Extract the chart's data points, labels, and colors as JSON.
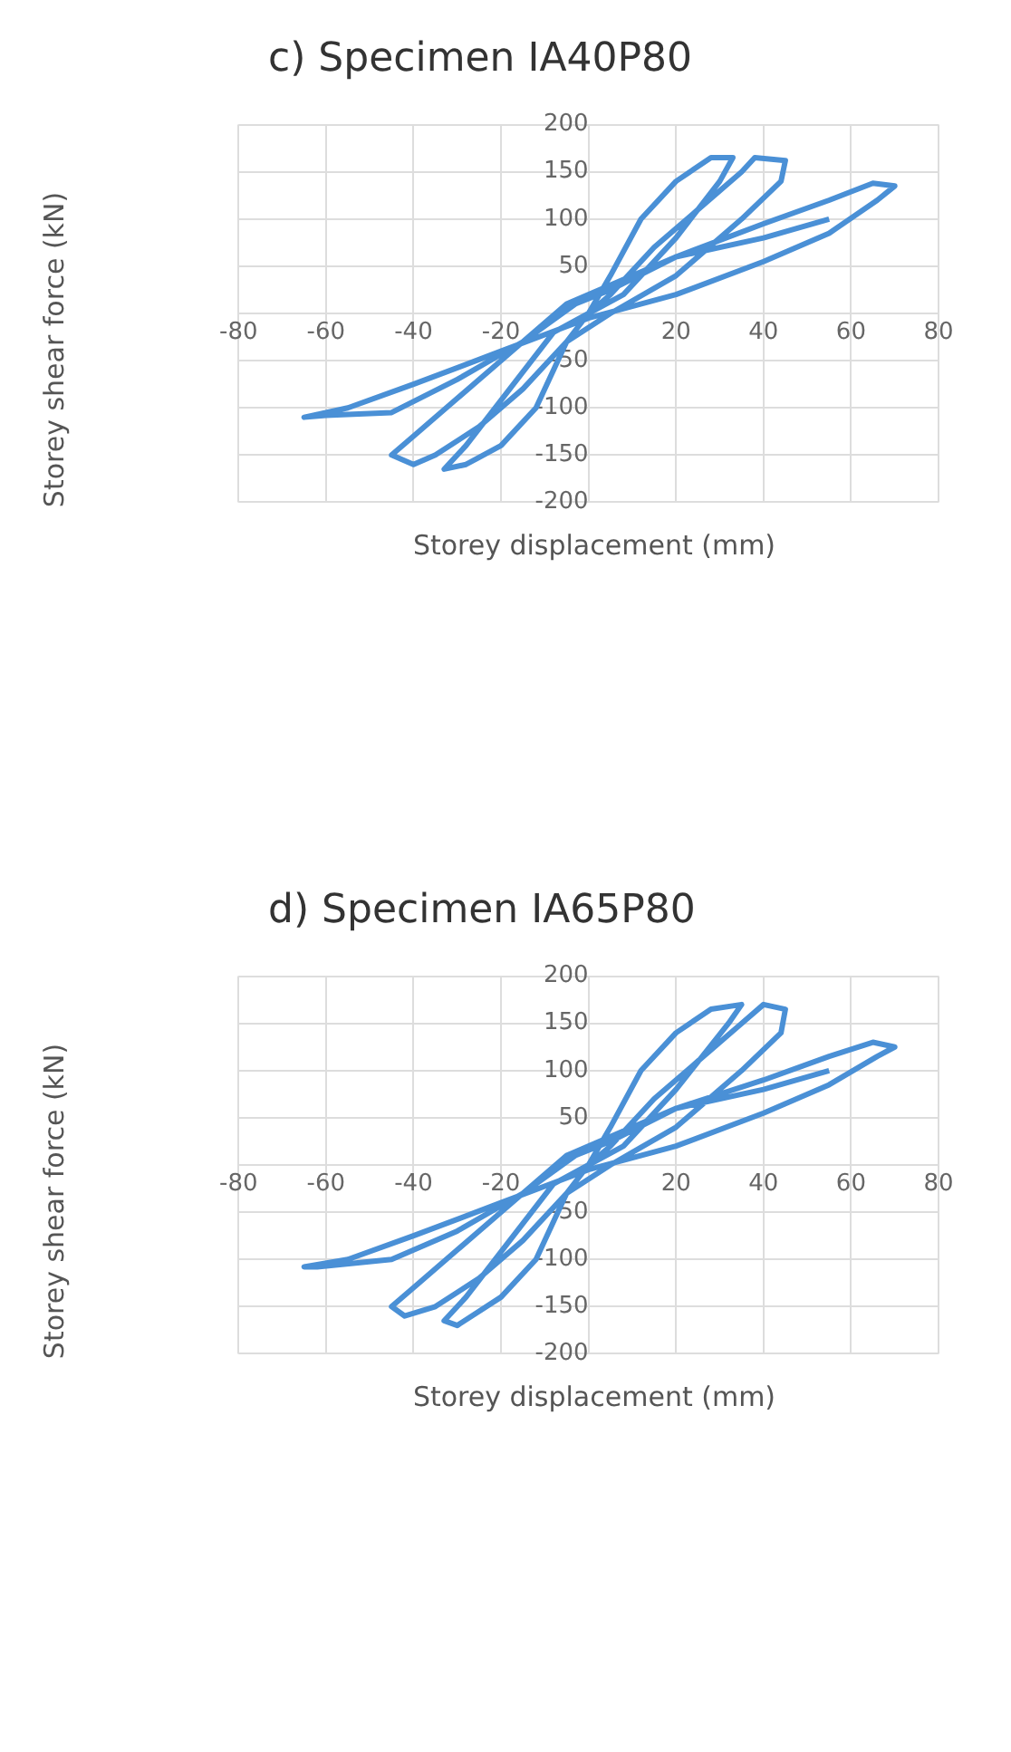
{
  "chart_data": [
    {
      "type": "line",
      "title": "c) Specimen IA40P80",
      "xlabel": "Storey displacement (mm)",
      "ylabel": "Storey shear force (kN)",
      "xlim": [
        -80,
        80
      ],
      "xticks": [
        -80,
        -60,
        -40,
        -20,
        {
          "value": 0,
          "label": null
        },
        20,
        40,
        60,
        80
      ],
      "ylim": [
        -200,
        200
      ],
      "yticks": [
        -200,
        -150,
        -100,
        -50,
        {
          "value": 0,
          "label": null
        },
        50,
        100,
        150,
        200
      ],
      "grid": true,
      "marker": "none",
      "series": [
        {
          "color": "#4a90d6",
          "x": [
            0,
            5,
            12,
            20,
            28,
            33,
            30,
            20,
            8,
            0,
            -5,
            -12,
            -20,
            -28,
            -33,
            -28,
            -18,
            -8,
            0,
            5,
            15,
            25,
            35,
            38,
            45,
            44,
            35,
            20,
            5,
            -5,
            -15,
            -25,
            -35,
            -40,
            -45,
            -40,
            -30,
            -15,
            -5,
            5,
            20,
            40,
            55,
            65,
            70,
            66,
            55,
            40,
            20,
            0,
            -20,
            -40,
            -55,
            -65,
            -60,
            -45,
            -30,
            -15,
            -3,
            5,
            20,
            40,
            55
          ],
          "values": [
            0,
            40,
            100,
            140,
            165,
            165,
            140,
            80,
            20,
            0,
            -30,
            -100,
            -140,
            -160,
            -165,
            -140,
            -80,
            -20,
            0,
            20,
            70,
            110,
            150,
            165,
            162,
            140,
            100,
            40,
            0,
            -30,
            -80,
            -120,
            -150,
            -160,
            -150,
            -130,
            -90,
            -30,
            10,
            30,
            60,
            95,
            120,
            138,
            135,
            120,
            85,
            55,
            20,
            -5,
            -40,
            -75,
            -100,
            -110,
            -108,
            -105,
            -70,
            -30,
            10,
            25,
            60,
            80,
            100
          ]
        }
      ]
    },
    {
      "type": "line",
      "title": "d) Specimen IA65P80",
      "xlabel": "Storey displacement (mm)",
      "ylabel": "Storey shear force (kN)",
      "xlim": [
        -80,
        80
      ],
      "xticks": [
        -80,
        -60,
        -40,
        -20,
        {
          "value": 0,
          "label": null
        },
        20,
        40,
        60,
        80
      ],
      "ylim": [
        -200,
        200
      ],
      "yticks": [
        -200,
        -150,
        -100,
        -50,
        {
          "value": 0,
          "label": null
        },
        50,
        100,
        150,
        200
      ],
      "grid": true,
      "marker": "none",
      "series": [
        {
          "color": "#4a90d6",
          "x": [
            0,
            5,
            12,
            20,
            28,
            35,
            32,
            20,
            8,
            0,
            -5,
            -12,
            -20,
            -30,
            -33,
            -28,
            -18,
            -8,
            0,
            5,
            15,
            25,
            35,
            40,
            45,
            44,
            35,
            20,
            5,
            -5,
            -15,
            -25,
            -35,
            -42,
            -45,
            -40,
            -30,
            -15,
            -5,
            5,
            20,
            40,
            55,
            65,
            70,
            66,
            55,
            40,
            20,
            0,
            -20,
            -40,
            -55,
            -65,
            -62,
            -45,
            -30,
            -15,
            -3,
            5,
            20,
            40,
            55
          ],
          "values": [
            0,
            40,
            100,
            140,
            165,
            170,
            150,
            80,
            20,
            0,
            -30,
            -100,
            -140,
            -170,
            -165,
            -140,
            -80,
            -20,
            0,
            20,
            70,
            110,
            150,
            170,
            165,
            140,
            100,
            40,
            0,
            -30,
            -80,
            -120,
            -150,
            -160,
            -150,
            -130,
            -90,
            -30,
            10,
            30,
            60,
            90,
            115,
            130,
            125,
            115,
            85,
            55,
            20,
            -5,
            -40,
            -75,
            -100,
            -108,
            -108,
            -100,
            -70,
            -30,
            10,
            25,
            60,
            80,
            100
          ]
        }
      ]
    }
  ]
}
